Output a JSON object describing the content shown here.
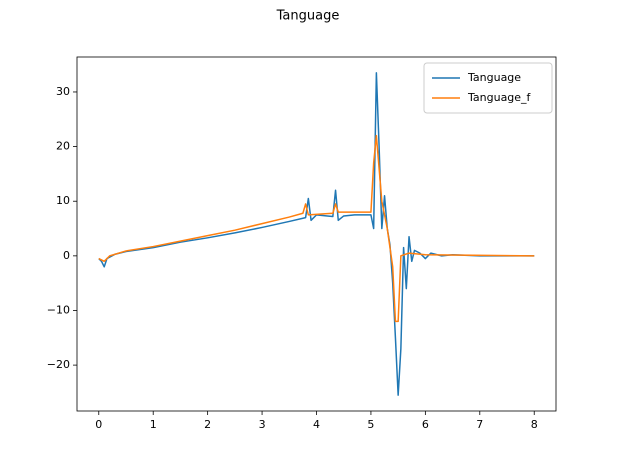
{
  "chart_data": {
    "type": "line",
    "title": "Tanguage",
    "xlim": [
      -0.4,
      8.4
    ],
    "ylim": [
      -28.4,
      36.4
    ],
    "xticks": [
      0,
      1,
      2,
      3,
      4,
      5,
      6,
      7,
      8
    ],
    "yticks": [
      {
        "value": -20,
        "label": "−20"
      },
      {
        "value": -10,
        "label": "−10"
      },
      0,
      10,
      20,
      30
    ],
    "legend": "upper right",
    "series": [
      {
        "name": "Tanguage",
        "color": "#1f77b4",
        "x": [
          0,
          0.05,
          0.1,
          0.15,
          0.3,
          0.5,
          1.0,
          1.5,
          2.0,
          2.5,
          3.0,
          3.5,
          3.8,
          3.85,
          3.9,
          4.0,
          4.2,
          4.3,
          4.35,
          4.4,
          4.5,
          4.7,
          5.0,
          5.05,
          5.1,
          5.15,
          5.2,
          5.25,
          5.3,
          5.35,
          5.4,
          5.45,
          5.5,
          5.55,
          5.6,
          5.65,
          5.7,
          5.75,
          5.8,
          5.9,
          6.0,
          6.1,
          6.3,
          6.5,
          7.0,
          7.5,
          8.0
        ],
        "values": [
          -0.5,
          -1,
          -2,
          -0.5,
          0.3,
          0.8,
          1.5,
          2.5,
          3.3,
          4.2,
          5.2,
          6.3,
          7,
          10.5,
          6.5,
          7.5,
          7.3,
          7.2,
          12,
          6.5,
          7.3,
          7.5,
          7.5,
          5,
          33.5,
          20,
          5,
          11,
          5,
          2,
          -5,
          -15,
          -25.5,
          -17,
          1.5,
          -6,
          3.5,
          -1,
          1,
          0.5,
          -0.5,
          0.5,
          0,
          0.2,
          0,
          0,
          0
        ]
      },
      {
        "name": "Tanguage_f",
        "color": "#ff7f0e",
        "x": [
          0,
          0.1,
          0.2,
          0.5,
          1.0,
          1.5,
          2.0,
          2.5,
          3.0,
          3.5,
          3.75,
          3.8,
          3.85,
          4.3,
          4.35,
          4.4,
          5.0,
          5.05,
          5.1,
          5.2,
          5.3,
          5.4,
          5.45,
          5.5,
          5.55,
          5.7,
          6.0,
          8.0
        ],
        "values": [
          -0.5,
          -1,
          0,
          0.9,
          1.7,
          2.7,
          3.7,
          4.7,
          5.9,
          7.1,
          7.8,
          9.5,
          7.5,
          7.8,
          9.5,
          8,
          8,
          17,
          22,
          10,
          5,
          -2,
          -12,
          -12,
          0,
          0.5,
          0.2,
          0
        ]
      }
    ]
  }
}
